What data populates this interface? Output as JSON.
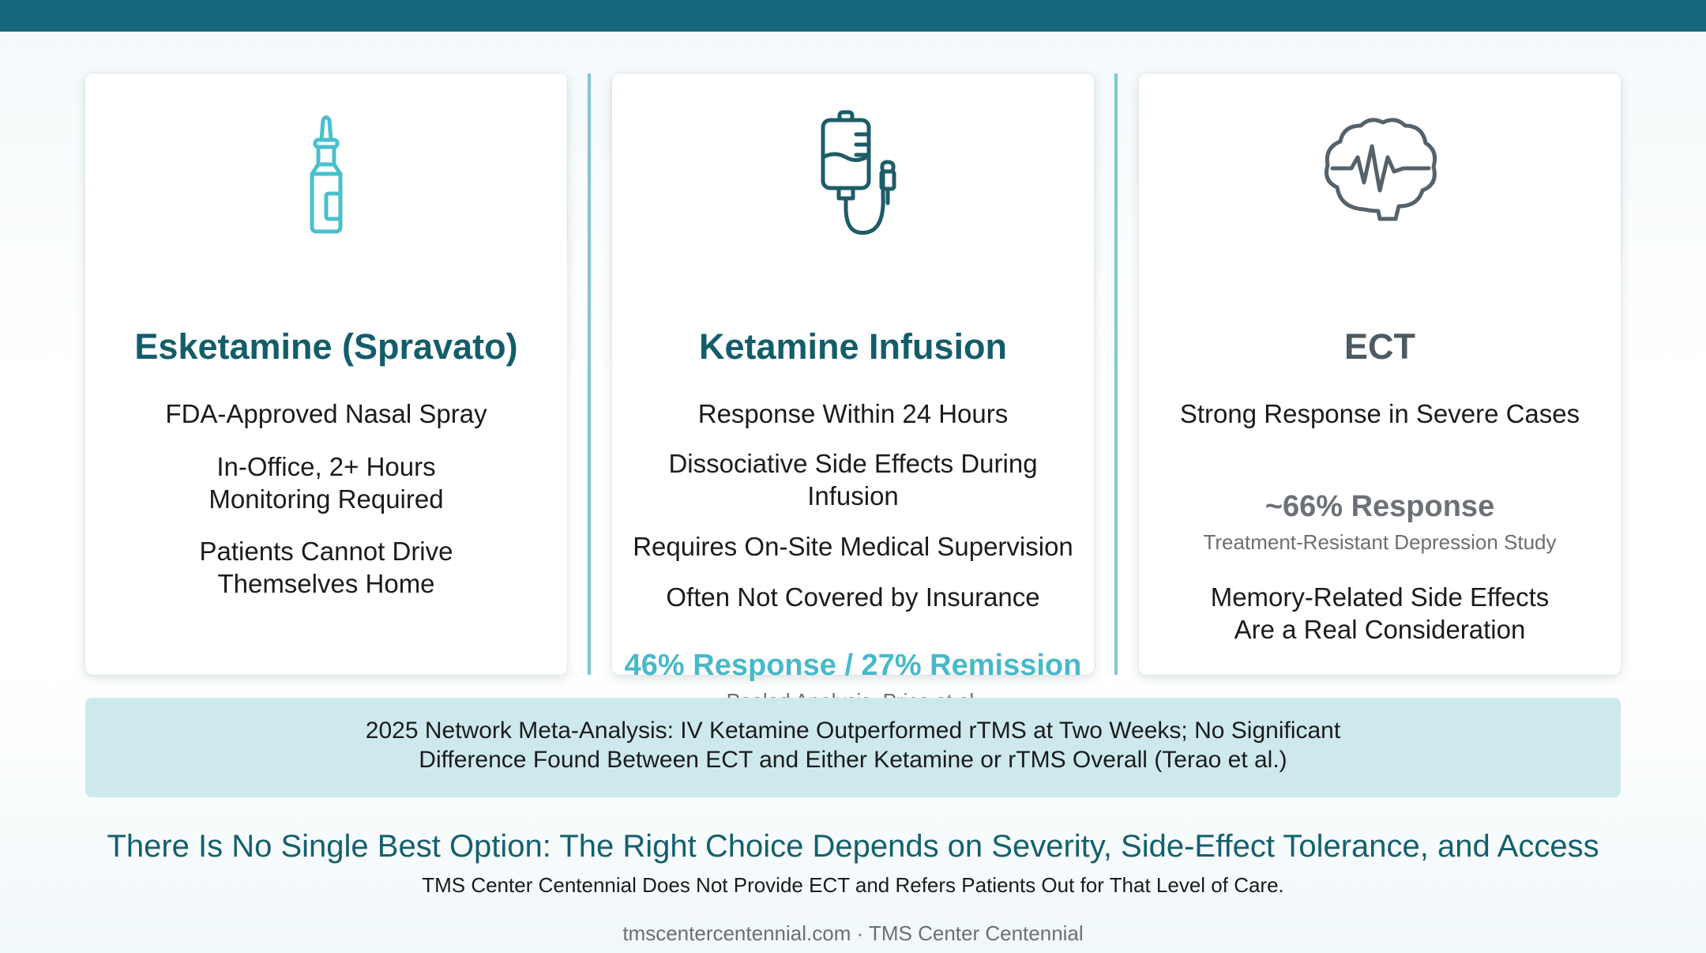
{
  "colors": {
    "top_bar": "#15677b",
    "title_teal": "#135d6a",
    "ect_title_gray": "#4d5a63",
    "icon_cyan": "#48c1cc",
    "icon_dark_teal": "#1d5c68",
    "icon_gray": "#56626b",
    "stat_cyan": "#48b9c9",
    "stat_gray": "#6b7177",
    "divider": "#7fc7d2",
    "banner_bg": "#cde9ee"
  },
  "cards": [
    {
      "icon": "nasal-spray-icon",
      "title": "Esketamine (Spravato)",
      "features": [
        "FDA-Approved Nasal Spray",
        [
          "In-Office, 2+ Hours",
          "Monitoring Required"
        ],
        [
          "Patients Cannot Drive",
          "Themselves Home"
        ]
      ]
    },
    {
      "icon": "iv-bag-icon",
      "title": "Ketamine Infusion",
      "features": [
        "Response Within 24 Hours",
        [
          "Dissociative Side Effects During",
          "Infusion"
        ],
        "Requires On-Site Medical Supervision",
        "Often Not Covered by Insurance"
      ],
      "stat": "46% Response / 27% Remission",
      "stat_source": "Pooled Analysis, Price et al."
    },
    {
      "icon": "brain-pulse-icon",
      "title": "ECT",
      "features": [
        "Strong Response in Severe Cases",
        [
          "Memory-Related Side Effects",
          "Are a Real Consideration"
        ]
      ],
      "stat": "~66% Response",
      "stat_source": "Treatment-Resistant Depression Study"
    }
  ],
  "banner": {
    "line1": "2025 Network Meta-Analysis: IV Ketamine Outperformed rTMS at Two Weeks; No Significant",
    "line2": "Difference Found Between ECT and Either Ketamine or rTMS Overall (Terao et al.)"
  },
  "headline": "There Is No Single Best Option: The Right Choice Depends on Severity, Side-Effect Tolerance, and Access",
  "subline": "TMS Center Centennial Does Not Provide ECT and Refers Patients Out for That Level of Care.",
  "footer": "tmscentercentennial.com · TMS Center Centennial"
}
